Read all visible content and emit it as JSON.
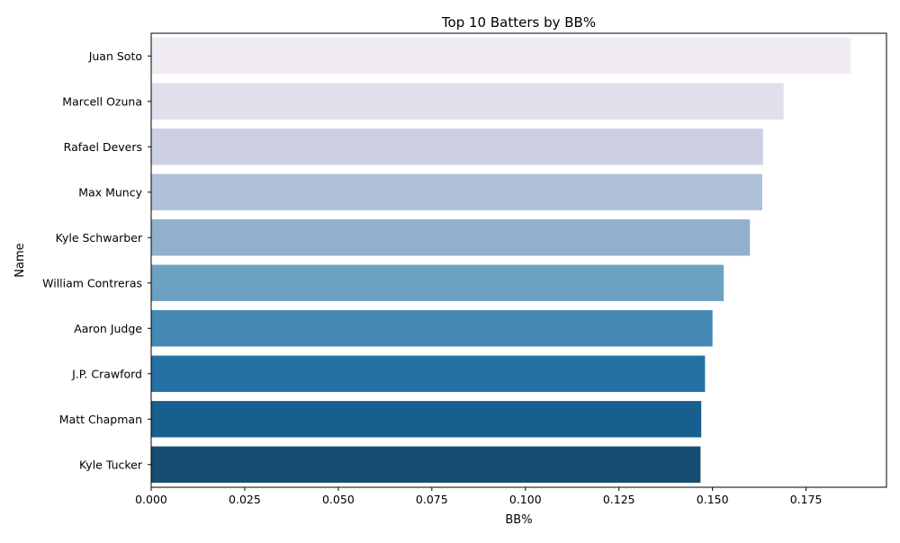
{
  "chart_data": {
    "type": "bar",
    "orientation": "horizontal",
    "title": "Top 10 Batters by BB%",
    "xlabel": "BB%",
    "ylabel": "Name",
    "categories": [
      "Juan Soto",
      "Marcell Ozuna",
      "Rafael Devers",
      "Max Muncy",
      "Kyle Schwarber",
      "William Contreras",
      "Aaron Judge",
      "J.P. Crawford",
      "Matt Chapman",
      "Kyle Tucker"
    ],
    "values": [
      0.187,
      0.169,
      0.1635,
      0.1633,
      0.16,
      0.153,
      0.15,
      0.148,
      0.147,
      0.1468
    ],
    "colors": [
      "#f0ebf3",
      "#e0dfec",
      "#cdd0e2",
      "#afc0da",
      "#91b0cc",
      "#6ca1c2",
      "#4389b4",
      "#2471a3",
      "#185f90",
      "#174d70"
    ],
    "xlim": [
      0,
      0.1965
    ],
    "xticks": [
      "0.000",
      "0.025",
      "0.050",
      "0.075",
      "0.100",
      "0.125",
      "0.150",
      "0.175"
    ],
    "xtick_values": [
      0,
      0.025,
      0.05,
      0.075,
      0.1,
      0.125,
      0.15,
      0.175
    ],
    "grid": false,
    "legend": "none"
  }
}
